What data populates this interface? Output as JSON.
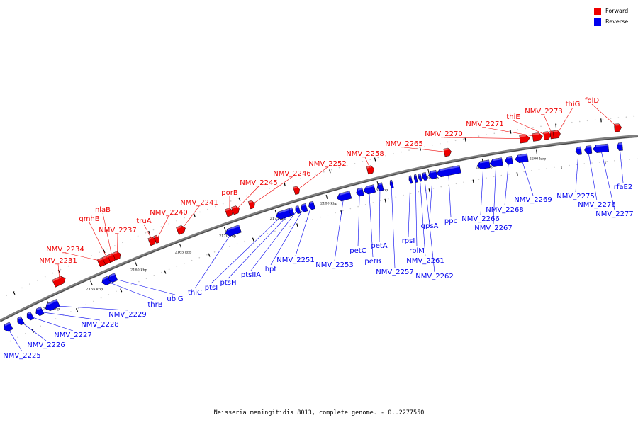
{
  "colors": {
    "forward": "#ee0000",
    "reverse": "#0000ee",
    "backbone": "#7f7f7f",
    "tick": "#000000",
    "ruler": "#c8c8c8"
  },
  "legend": {
    "forward_label": "Forward",
    "reverse_label": "Reverse"
  },
  "caption": "Neisseria meningitidis 8013, complete genome. - 0..2277550",
  "scale_labels": [
    "2150 kbp",
    "2155 kbp",
    "2160 kbp",
    "2165 kbp",
    "2170 kbp",
    "2175 kbp",
    "2180 kbp",
    "2185 kbp",
    "2190 kbp",
    "2195 kbp",
    "2200 kbp"
  ],
  "forward_genes": [
    "NMV_2231",
    "NMV_2234",
    "gmhB",
    "nlaB",
    "NMV_2237",
    "truA",
    "NMV_2240",
    "NMV_2241",
    "porB",
    "NMV_2245",
    "NMV_2246",
    "NMV_2252",
    "NMV_2258",
    "NMV_2265",
    "NMV_2270",
    "NMV_2271",
    "thiE",
    "NMV_2273",
    "thiG",
    "folD"
  ],
  "reverse_genes": [
    "NMV_2225",
    "NMV_2226",
    "NMV_2227",
    "NMV_2228",
    "NMV_2229",
    "thrB",
    "ubiG",
    "thiC",
    "ptsI",
    "ptsH",
    "ptsIIA",
    "hpt",
    "NMV_2251",
    "NMV_2253",
    "petC",
    "petB",
    "petA",
    "NMV_2257",
    "rpsI",
    "rplM",
    "NMV_2261",
    "NMV_2262",
    "gpsA",
    "ppc",
    "NMV_2266",
    "NMV_2267",
    "NMV_2268",
    "NMV_2269",
    "NMV_2275",
    "NMV_2276",
    "NMV_2277",
    "rfaE2"
  ]
}
